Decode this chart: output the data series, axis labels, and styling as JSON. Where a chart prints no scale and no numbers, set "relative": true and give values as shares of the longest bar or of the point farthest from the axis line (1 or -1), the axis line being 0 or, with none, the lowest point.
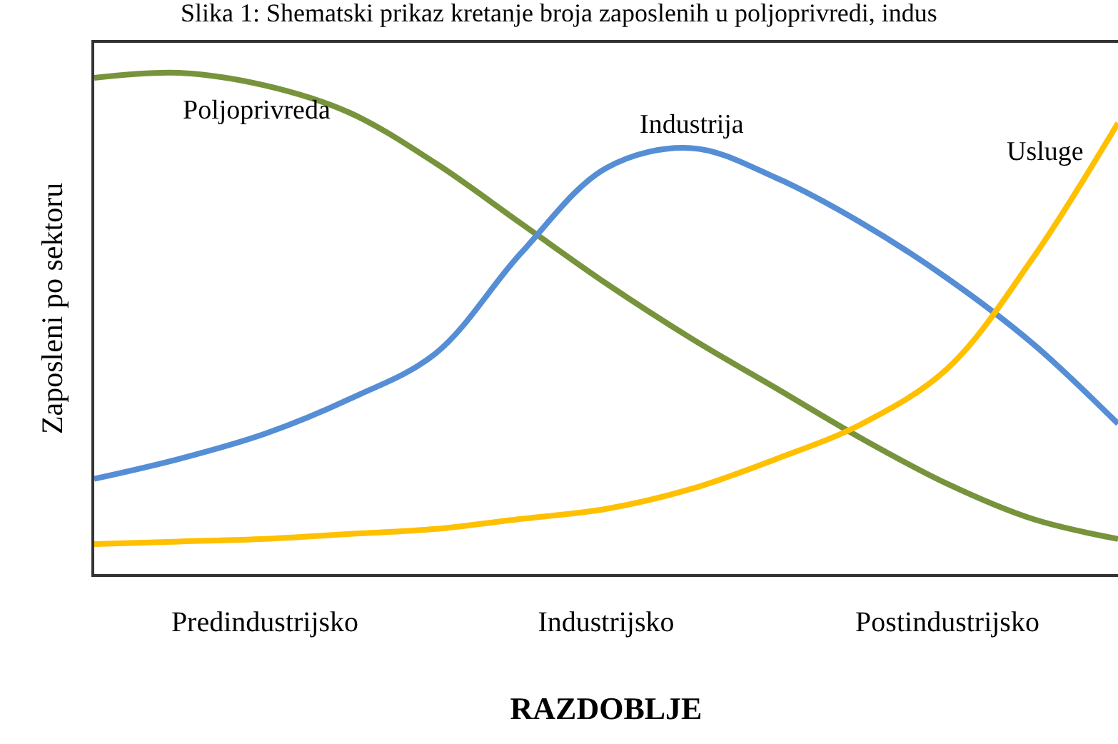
{
  "chart_data": {
    "type": "line",
    "relative": true,
    "title": "Slika 1: Shematski prikaz kretanje broja zaposlenih u poljoprivredi, indus",
    "xlabel": "RAZDOBLJE",
    "ylabel": "Zaposleni po sektoru",
    "categories": [
      null,
      null,
      "Predindustrijsko",
      null,
      null,
      null,
      "Industrijsko",
      null,
      null,
      null,
      "Postindustrijsko",
      null,
      null
    ],
    "legend": false,
    "marker": "none",
    "line_style": "solid",
    "series": [
      {
        "name": "Poljoprivreda",
        "color": "#77933c",
        "values": [
          0.99,
          1.0,
          0.975,
          0.92,
          0.82,
          0.7,
          0.58,
          0.47,
          0.37,
          0.27,
          0.18,
          0.11,
          0.07
        ]
      },
      {
        "name": "Industrija",
        "color": "#558ed5",
        "values": [
          0.19,
          0.23,
          0.28,
          0.35,
          0.44,
          0.64,
          0.81,
          0.85,
          0.79,
          0.7,
          0.59,
          0.46,
          0.3
        ]
      },
      {
        "name": "Usluge",
        "color": "#ffc000",
        "values": [
          0.06,
          0.065,
          0.07,
          0.08,
          0.09,
          0.11,
          0.13,
          0.17,
          0.23,
          0.3,
          0.41,
          0.63,
          0.9
        ]
      }
    ]
  }
}
